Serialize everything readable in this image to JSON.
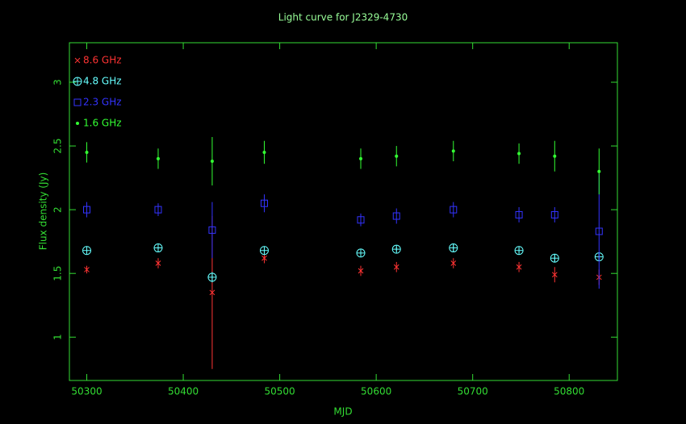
{
  "chart_data": {
    "type": "scatter",
    "title": "Light curve for J2329-4730",
    "xlabel": "MJD",
    "ylabel": "Flux density (Jy)",
    "x": [
      50300,
      50374,
      50430,
      50484,
      50584,
      50621,
      50680,
      50748,
      50785,
      50831
    ],
    "xlim": [
      50282,
      50850
    ],
    "ylim": [
      0.66,
      3.31
    ],
    "xticks": [
      50300,
      50400,
      50500,
      50600,
      50700,
      50800
    ],
    "yticks": [
      1,
      1.5,
      2,
      2.5,
      3
    ],
    "axis_color": "#33dd33",
    "legend": "upper left",
    "series": [
      {
        "name": "8.6 GHz",
        "color": "#ff3333",
        "marker": "cross",
        "values": [
          1.53,
          1.58,
          1.35,
          1.62,
          1.52,
          1.55,
          1.58,
          1.55,
          1.49,
          1.47
        ],
        "errors": [
          0.03,
          0.04,
          0.6,
          0.04,
          0.04,
          0.04,
          0.04,
          0.04,
          0.06,
          0.06
        ]
      },
      {
        "name": "4.8 GHz",
        "color": "#66ffff",
        "marker": "circle-plus",
        "values": [
          1.68,
          1.7,
          1.47,
          1.68,
          1.66,
          1.69,
          1.7,
          1.68,
          1.62,
          1.63
        ],
        "errors": [
          0.02,
          0.03,
          0.04,
          0.02,
          0.02,
          0.02,
          0.03,
          0.02,
          0.03,
          0.03
        ]
      },
      {
        "name": "2.3 GHz",
        "color": "#3333ff",
        "marker": "square",
        "values": [
          2.0,
          2.0,
          1.84,
          2.05,
          1.92,
          1.95,
          2.0,
          1.96,
          1.96,
          1.83
        ],
        "errors": [
          0.06,
          0.05,
          0.22,
          0.07,
          0.05,
          0.06,
          0.06,
          0.06,
          0.06,
          0.45
        ]
      },
      {
        "name": "1.6 GHz",
        "color": "#33ff33",
        "marker": "dot",
        "values": [
          2.45,
          2.4,
          2.38,
          2.45,
          2.4,
          2.42,
          2.46,
          2.44,
          2.42,
          2.3
        ],
        "errors": [
          0.08,
          0.08,
          0.19,
          0.09,
          0.08,
          0.08,
          0.08,
          0.08,
          0.12,
          0.18
        ]
      }
    ]
  }
}
